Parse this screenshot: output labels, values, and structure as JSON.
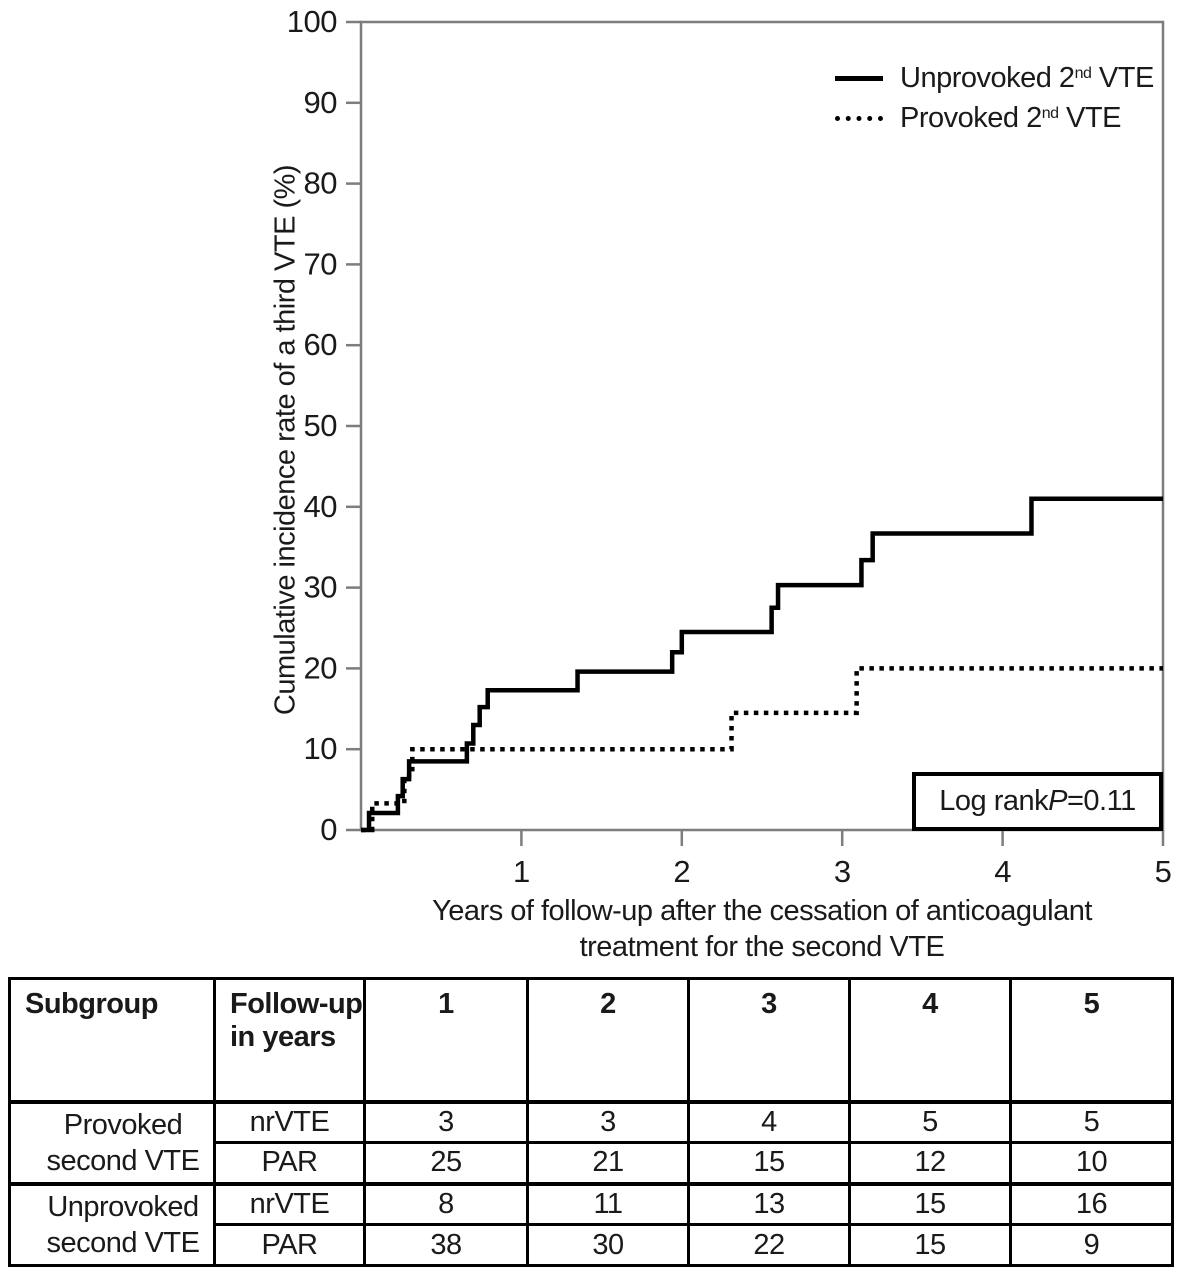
{
  "chart_data": {
    "type": "line",
    "subtype": "step",
    "title": "",
    "xlabel": "Years of follow-up after the cessation of anticoagulant treatment for the second VTE",
    "ylabel": "Cumulative incidence rate of a third VTE (%)",
    "xlim": [
      0,
      5
    ],
    "ylim": [
      0,
      100
    ],
    "xticks": [
      1,
      2,
      3,
      4,
      5
    ],
    "yticks": [
      0,
      10,
      20,
      30,
      40,
      50,
      60,
      70,
      80,
      90,
      100
    ],
    "grid": false,
    "legend_position": "top-right",
    "annotation": "Log rank P=0.11",
    "series": [
      {
        "name": "Unprovoked 2nd VTE",
        "line_style": "solid",
        "color": "#000000",
        "x": [
          0,
          0.05,
          0.23,
          0.26,
          0.3,
          0.66,
          0.7,
          0.74,
          0.79,
          1.35,
          1.94,
          2.0,
          2.56,
          2.6,
          3.12,
          3.19,
          4.18,
          5.0
        ],
        "y": [
          0,
          2.1,
          4.2,
          6.3,
          8.5,
          10.7,
          13.0,
          15.2,
          17.3,
          19.6,
          22.0,
          24.5,
          27.5,
          30.3,
          33.4,
          36.7,
          41.0,
          41.0
        ]
      },
      {
        "name": "Provoked 2nd VTE",
        "line_style": "dotted",
        "color": "#000000",
        "x": [
          0,
          0.07,
          0.27,
          0.32,
          2.31,
          3.09,
          5.0
        ],
        "y": [
          0,
          3.3,
          6.7,
          10.0,
          14.5,
          20.0,
          20.0
        ]
      }
    ]
  },
  "axes": {
    "ylabel": "Cumulative incidence rate of a third VTE (%)",
    "xlabel_line1": "Years of follow-up after the cessation of anticoagulant",
    "xlabel_line2": "treatment for the second VTE"
  },
  "legend": {
    "items": [
      {
        "prefix": "Unprovoked 2",
        "sup": "nd",
        "suffix": " VTE",
        "line": "solid"
      },
      {
        "prefix": "Provoked 2",
        "sup": "nd",
        "suffix": " VTE",
        "line": "dotted"
      }
    ]
  },
  "annotation": {
    "prefix": "Log rank ",
    "italic": "P",
    "suffix": "=0.11"
  },
  "table": {
    "headers": {
      "subgroup": "Subgroup",
      "followup": "Follow-up in years",
      "years": [
        "1",
        "2",
        "3",
        "4",
        "5"
      ]
    },
    "groups": [
      {
        "name": "Provoked second VTE",
        "rows": [
          {
            "label": "nrVTE",
            "values": [
              "3",
              "3",
              "4",
              "5",
              "5"
            ]
          },
          {
            "label": "PAR",
            "values": [
              "25",
              "21",
              "15",
              "12",
              "10"
            ]
          }
        ]
      },
      {
        "name": "Unprovoked second VTE",
        "rows": [
          {
            "label": "nrVTE",
            "values": [
              "8",
              "11",
              "13",
              "15",
              "16"
            ]
          },
          {
            "label": "PAR",
            "values": [
              "38",
              "30",
              "22",
              "15",
              "9"
            ]
          }
        ]
      }
    ]
  }
}
